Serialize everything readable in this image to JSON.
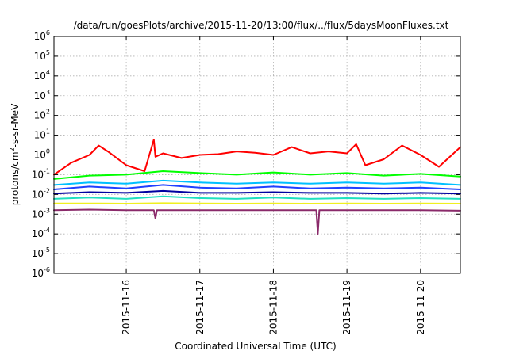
{
  "chart_data": {
    "type": "line",
    "title": "/data/run/goesPlots/archive/2015-11-20/13:00/flux/../flux/5daysMoonFluxes.txt",
    "xlabel": "Coordinated Universal Time (UTC)",
    "ylabel_base": "protons/cm",
    "ylabel_sup": "2",
    "ylabel_rest": "-s-sr-MeV",
    "y_scale": "log",
    "ylim": [
      1e-06,
      1000000.0
    ],
    "y_ticks": [
      {
        "base": "10",
        "exp": "-6",
        "value": 1e-06
      },
      {
        "base": "10",
        "exp": "-5",
        "value": 1e-05
      },
      {
        "base": "10",
        "exp": "-4",
        "value": 0.0001
      },
      {
        "base": "10",
        "exp": "-3",
        "value": 0.001
      },
      {
        "base": "10",
        "exp": "-2",
        "value": 0.01
      },
      {
        "base": "10",
        "exp": "-1",
        "value": 0.1
      },
      {
        "base": "10",
        "exp": "0",
        "value": 1
      },
      {
        "base": "10",
        "exp": "1",
        "value": 10
      },
      {
        "base": "10",
        "exp": "2",
        "value": 100
      },
      {
        "base": "10",
        "exp": "3",
        "value": 1000
      },
      {
        "base": "10",
        "exp": "4",
        "value": 10000
      },
      {
        "base": "10",
        "exp": "5",
        "value": 100000
      },
      {
        "base": "10",
        "exp": "6",
        "value": 1000000
      }
    ],
    "x_range": [
      "2015-11-15 00:25",
      "2015-11-20 13:00"
    ],
    "x_ticks": [
      {
        "label": "2015-11-16",
        "time": "2015-11-16 00:00"
      },
      {
        "label": "2015-11-17",
        "time": "2015-11-17 00:00"
      },
      {
        "label": "2015-11-18",
        "time": "2015-11-18 00:00"
      },
      {
        "label": "2015-11-19",
        "time": "2015-11-19 00:00"
      },
      {
        "label": "2015-11-20",
        "time": "2015-11-20 00:00"
      }
    ],
    "grid": true,
    "legend": "none",
    "series": [
      {
        "color": "#ff0000",
        "x": [
          "2015-11-15 00:25",
          "2015-11-15 06:00",
          "2015-11-15 12:00",
          "2015-11-15 15:00",
          "2015-11-15 18:00",
          "2015-11-16 00:00",
          "2015-11-16 06:00",
          "2015-11-16 09:00",
          "2015-11-16 09:30",
          "2015-11-16 12:00",
          "2015-11-16 18:00",
          "2015-11-17 00:00",
          "2015-11-17 06:00",
          "2015-11-17 12:00",
          "2015-11-17 18:00",
          "2015-11-18 00:00",
          "2015-11-18 06:00",
          "2015-11-18 12:00",
          "2015-11-18 18:00",
          "2015-11-19 00:00",
          "2015-11-19 03:00",
          "2015-11-19 06:00",
          "2015-11-19 12:00",
          "2015-11-19 18:00",
          "2015-11-20 00:00",
          "2015-11-20 06:00",
          "2015-11-20 13:00"
        ],
        "y": [
          0.1,
          0.4,
          1.0,
          3.0,
          1.5,
          0.3,
          0.15,
          6.0,
          0.8,
          1.2,
          0.7,
          1.0,
          1.1,
          1.5,
          1.3,
          1.0,
          2.5,
          1.2,
          1.5,
          1.2,
          3.5,
          0.3,
          0.6,
          3.0,
          1.0,
          0.25,
          2.5
        ]
      },
      {
        "color": "#00ff00",
        "x": [
          "2015-11-15 00:25",
          "2015-11-15 12:00",
          "2015-11-16 00:00",
          "2015-11-16 12:00",
          "2015-11-17 00:00",
          "2015-11-17 12:00",
          "2015-11-18 00:00",
          "2015-11-18 12:00",
          "2015-11-19 00:00",
          "2015-11-19 12:00",
          "2015-11-20 00:00",
          "2015-11-20 13:00"
        ],
        "y": [
          0.06,
          0.09,
          0.1,
          0.15,
          0.12,
          0.1,
          0.13,
          0.1,
          0.12,
          0.09,
          0.11,
          0.08
        ]
      },
      {
        "color": "#00c0ff",
        "x": [
          "2015-11-15 00:25",
          "2015-11-15 12:00",
          "2015-11-16 00:00",
          "2015-11-16 12:00",
          "2015-11-17 00:00",
          "2015-11-17 12:00",
          "2015-11-18 00:00",
          "2015-11-18 12:00",
          "2015-11-19 00:00",
          "2015-11-19 12:00",
          "2015-11-20 00:00",
          "2015-11-20 13:00"
        ],
        "y": [
          0.03,
          0.04,
          0.035,
          0.05,
          0.04,
          0.035,
          0.04,
          0.035,
          0.04,
          0.035,
          0.04,
          0.03
        ]
      },
      {
        "color": "#2040ff",
        "x": [
          "2015-11-15 00:25",
          "2015-11-15 12:00",
          "2015-11-16 00:00",
          "2015-11-16 12:00",
          "2015-11-17 00:00",
          "2015-11-17 12:00",
          "2015-11-18 00:00",
          "2015-11-18 12:00",
          "2015-11-19 00:00",
          "2015-11-19 12:00",
          "2015-11-20 00:00",
          "2015-11-20 13:00"
        ],
        "y": [
          0.018,
          0.025,
          0.02,
          0.03,
          0.022,
          0.02,
          0.025,
          0.02,
          0.022,
          0.02,
          0.022,
          0.018
        ]
      },
      {
        "color": "#0000a0",
        "x": [
          "2015-11-15 00:25",
          "2015-11-15 12:00",
          "2015-11-16 00:00",
          "2015-11-16 12:00",
          "2015-11-17 00:00",
          "2015-11-17 12:00",
          "2015-11-18 00:00",
          "2015-11-18 12:00",
          "2015-11-19 00:00",
          "2015-11-19 12:00",
          "2015-11-20 00:00",
          "2015-11-20 13:00"
        ],
        "y": [
          0.011,
          0.013,
          0.012,
          0.015,
          0.012,
          0.012,
          0.013,
          0.012,
          0.012,
          0.011,
          0.012,
          0.011
        ]
      },
      {
        "color": "#20e0c0",
        "x": [
          "2015-11-15 00:25",
          "2015-11-15 12:00",
          "2015-11-16 00:00",
          "2015-11-16 12:00",
          "2015-11-17 00:00",
          "2015-11-17 12:00",
          "2015-11-18 00:00",
          "2015-11-18 12:00",
          "2015-11-19 00:00",
          "2015-11-19 12:00",
          "2015-11-20 00:00",
          "2015-11-20 13:00"
        ],
        "y": [
          0.006,
          0.007,
          0.006,
          0.008,
          0.0065,
          0.006,
          0.007,
          0.006,
          0.0065,
          0.006,
          0.0065,
          0.006
        ]
      },
      {
        "color": "#f0f020",
        "x": [
          "2015-11-15 00:25",
          "2015-11-15 12:00",
          "2015-11-16 00:00",
          "2015-11-16 12:00",
          "2015-11-17 00:00",
          "2015-11-17 12:00",
          "2015-11-18 00:00",
          "2015-11-18 12:00",
          "2015-11-19 00:00",
          "2015-11-19 12:00",
          "2015-11-20 00:00",
          "2015-11-20 13:00"
        ],
        "y": [
          0.0035,
          0.0035,
          0.0034,
          0.0036,
          0.0035,
          0.0034,
          0.0035,
          0.0034,
          0.0035,
          0.0034,
          0.0035,
          0.0034
        ]
      },
      {
        "color": "#8a2a6a",
        "x": [
          "2015-11-15 00:25",
          "2015-11-15 12:00",
          "2015-11-16 00:00",
          "2015-11-16 09:00",
          "2015-11-16 09:30",
          "2015-11-16 10:00",
          "2015-11-17 00:00",
          "2015-11-18 00:00",
          "2015-11-18 14:00",
          "2015-11-18 14:30",
          "2015-11-18 15:00",
          "2015-11-19 00:00",
          "2015-11-20 00:00",
          "2015-11-20 13:00"
        ],
        "y": [
          0.0016,
          0.0017,
          0.0016,
          0.0016,
          0.0006,
          0.0016,
          0.0016,
          0.0016,
          0.0016,
          0.0001,
          0.0016,
          0.0016,
          0.0016,
          0.0015
        ]
      }
    ]
  }
}
